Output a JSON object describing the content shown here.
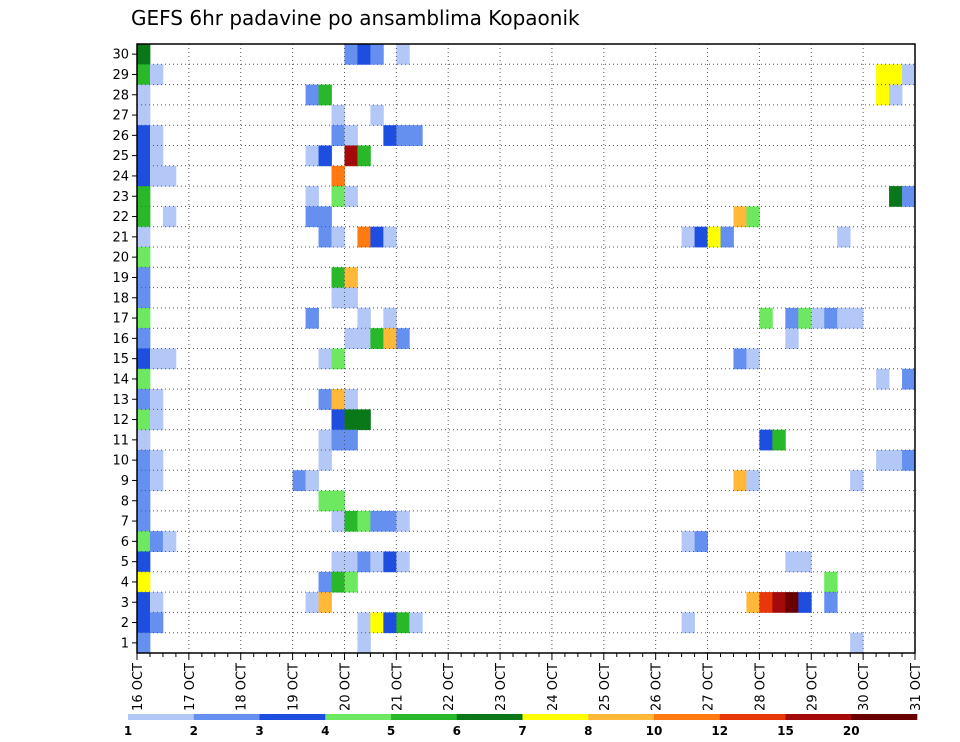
{
  "chart_data": {
    "type": "heatmap",
    "title": "GEFS 6hr padavine po ansamblima Kopaonik",
    "x_tick_labels": [
      "16 OCT",
      "17 OCT",
      "18 OCT",
      "19 OCT",
      "20 OCT",
      "21 OCT",
      "22 OCT",
      "23 OCT",
      "24 OCT",
      "25 OCT",
      "26 OCT",
      "27 OCT",
      "28 OCT",
      "29 OCT",
      "30 OCT",
      "31 OCT"
    ],
    "y_tick_labels": [
      "1",
      "2",
      "3",
      "4",
      "5",
      "6",
      "7",
      "8",
      "9",
      "10",
      "11",
      "12",
      "13",
      "14",
      "15",
      "16",
      "17",
      "18",
      "19",
      "20",
      "21",
      "22",
      "23",
      "24",
      "25",
      "26",
      "27",
      "28",
      "29",
      "30"
    ],
    "time_step_hours": 6,
    "xlim_steps": [
      0,
      60
    ],
    "ylim": [
      0,
      30
    ],
    "grid": true,
    "colorbar": {
      "labels": [
        "1",
        "2",
        "3",
        "4",
        "5",
        "6",
        "7",
        "8",
        "10",
        "12",
        "15",
        "20"
      ],
      "colors": [
        "#b4c8f8",
        "#6690f0",
        "#1e4ee0",
        "#6ee860",
        "#28b82a",
        "#0a7818",
        "#ffff00",
        "#ffb838",
        "#ff7a10",
        "#e8380a",
        "#a40a0a",
        "#680000"
      ]
    },
    "cells": [
      {
        "member": 30,
        "step": 0,
        "level": 6
      },
      {
        "member": 30,
        "step": 16,
        "level": 2
      },
      {
        "member": 30,
        "step": 17,
        "level": 3
      },
      {
        "member": 30,
        "step": 18,
        "level": 2
      },
      {
        "member": 30,
        "step": 20,
        "level": 1
      },
      {
        "member": 29,
        "step": 0,
        "level": 5
      },
      {
        "member": 29,
        "step": 1,
        "level": 1
      },
      {
        "member": 29,
        "step": 57,
        "level": 7
      },
      {
        "member": 29,
        "step": 58,
        "level": 7
      },
      {
        "member": 29,
        "step": 59,
        "level": 1
      },
      {
        "member": 28,
        "step": 0,
        "level": 1
      },
      {
        "member": 28,
        "step": 13,
        "level": 2
      },
      {
        "member": 28,
        "step": 14,
        "level": 5
      },
      {
        "member": 28,
        "step": 57,
        "level": 7
      },
      {
        "member": 28,
        "step": 58,
        "level": 1
      },
      {
        "member": 27,
        "step": 0,
        "level": 1
      },
      {
        "member": 27,
        "step": 15,
        "level": 1
      },
      {
        "member": 27,
        "step": 18,
        "level": 1
      },
      {
        "member": 26,
        "step": 0,
        "level": 3
      },
      {
        "member": 26,
        "step": 1,
        "level": 1
      },
      {
        "member": 26,
        "step": 15,
        "level": 2
      },
      {
        "member": 26,
        "step": 16,
        "level": 1
      },
      {
        "member": 26,
        "step": 19,
        "level": 3
      },
      {
        "member": 26,
        "step": 20,
        "level": 2
      },
      {
        "member": 26,
        "step": 21,
        "level": 2
      },
      {
        "member": 25,
        "step": 0,
        "level": 3
      },
      {
        "member": 25,
        "step": 1,
        "level": 1
      },
      {
        "member": 25,
        "step": 13,
        "level": 1
      },
      {
        "member": 25,
        "step": 14,
        "level": 3
      },
      {
        "member": 25,
        "step": 16,
        "level": 11
      },
      {
        "member": 25,
        "step": 17,
        "level": 5
      },
      {
        "member": 24,
        "step": 0,
        "level": 3
      },
      {
        "member": 24,
        "step": 1,
        "level": 1
      },
      {
        "member": 24,
        "step": 2,
        "level": 1
      },
      {
        "member": 24,
        "step": 15,
        "level": 9
      },
      {
        "member": 23,
        "step": 0,
        "level": 5
      },
      {
        "member": 23,
        "step": 13,
        "level": 1
      },
      {
        "member": 23,
        "step": 15,
        "level": 4
      },
      {
        "member": 23,
        "step": 16,
        "level": 1
      },
      {
        "member": 23,
        "step": 58,
        "level": 6
      },
      {
        "member": 23,
        "step": 59,
        "level": 2
      },
      {
        "member": 22,
        "step": 0,
        "level": 5
      },
      {
        "member": 22,
        "step": 2,
        "level": 1
      },
      {
        "member": 22,
        "step": 13,
        "level": 2
      },
      {
        "member": 22,
        "step": 14,
        "level": 2
      },
      {
        "member": 22,
        "step": 46,
        "level": 8
      },
      {
        "member": 22,
        "step": 47,
        "level": 4
      },
      {
        "member": 21,
        "step": 0,
        "level": 1
      },
      {
        "member": 21,
        "step": 14,
        "level": 2
      },
      {
        "member": 21,
        "step": 15,
        "level": 1
      },
      {
        "member": 21,
        "step": 17,
        "level": 9
      },
      {
        "member": 21,
        "step": 18,
        "level": 3
      },
      {
        "member": 21,
        "step": 19,
        "level": 1
      },
      {
        "member": 21,
        "step": 42,
        "level": 1
      },
      {
        "member": 21,
        "step": 43,
        "level": 3
      },
      {
        "member": 21,
        "step": 44,
        "level": 7
      },
      {
        "member": 21,
        "step": 45,
        "level": 2
      },
      {
        "member": 21,
        "step": 54,
        "level": 1
      },
      {
        "member": 20,
        "step": 0,
        "level": 4
      },
      {
        "member": 19,
        "step": 0,
        "level": 2
      },
      {
        "member": 19,
        "step": 15,
        "level": 5
      },
      {
        "member": 19,
        "step": 16,
        "level": 8
      },
      {
        "member": 18,
        "step": 0,
        "level": 2
      },
      {
        "member": 18,
        "step": 15,
        "level": 1
      },
      {
        "member": 18,
        "step": 16,
        "level": 1
      },
      {
        "member": 17,
        "step": 0,
        "level": 4
      },
      {
        "member": 17,
        "step": 13,
        "level": 2
      },
      {
        "member": 17,
        "step": 17,
        "level": 1
      },
      {
        "member": 17,
        "step": 19,
        "level": 1
      },
      {
        "member": 17,
        "step": 48,
        "level": 4
      },
      {
        "member": 17,
        "step": 50,
        "level": 2
      },
      {
        "member": 17,
        "step": 51,
        "level": 4
      },
      {
        "member": 17,
        "step": 52,
        "level": 1
      },
      {
        "member": 17,
        "step": 53,
        "level": 2
      },
      {
        "member": 17,
        "step": 54,
        "level": 1
      },
      {
        "member": 17,
        "step": 55,
        "level": 1
      },
      {
        "member": 16,
        "step": 0,
        "level": 2
      },
      {
        "member": 16,
        "step": 16,
        "level": 1
      },
      {
        "member": 16,
        "step": 17,
        "level": 1
      },
      {
        "member": 16,
        "step": 18,
        "level": 5
      },
      {
        "member": 16,
        "step": 19,
        "level": 8
      },
      {
        "member": 16,
        "step": 20,
        "level": 2
      },
      {
        "member": 16,
        "step": 50,
        "level": 1
      },
      {
        "member": 15,
        "step": 0,
        "level": 3
      },
      {
        "member": 15,
        "step": 1,
        "level": 1
      },
      {
        "member": 15,
        "step": 2,
        "level": 1
      },
      {
        "member": 15,
        "step": 14,
        "level": 1
      },
      {
        "member": 15,
        "step": 15,
        "level": 4
      },
      {
        "member": 15,
        "step": 46,
        "level": 2
      },
      {
        "member": 15,
        "step": 47,
        "level": 1
      },
      {
        "member": 14,
        "step": 0,
        "level": 4
      },
      {
        "member": 14,
        "step": 57,
        "level": 1
      },
      {
        "member": 14,
        "step": 59,
        "level": 2
      },
      {
        "member": 13,
        "step": 0,
        "level": 2
      },
      {
        "member": 13,
        "step": 1,
        "level": 1
      },
      {
        "member": 13,
        "step": 14,
        "level": 2
      },
      {
        "member": 13,
        "step": 15,
        "level": 8
      },
      {
        "member": 13,
        "step": 16,
        "level": 1
      },
      {
        "member": 12,
        "step": 0,
        "level": 4
      },
      {
        "member": 12,
        "step": 1,
        "level": 1
      },
      {
        "member": 12,
        "step": 15,
        "level": 3
      },
      {
        "member": 12,
        "step": 16,
        "level": 6
      },
      {
        "member": 12,
        "step": 17,
        "level": 6
      },
      {
        "member": 11,
        "step": 0,
        "level": 1
      },
      {
        "member": 11,
        "step": 14,
        "level": 1
      },
      {
        "member": 11,
        "step": 15,
        "level": 2
      },
      {
        "member": 11,
        "step": 16,
        "level": 2
      },
      {
        "member": 11,
        "step": 48,
        "level": 3
      },
      {
        "member": 11,
        "step": 49,
        "level": 5
      },
      {
        "member": 10,
        "step": 0,
        "level": 2
      },
      {
        "member": 10,
        "step": 1,
        "level": 1
      },
      {
        "member": 10,
        "step": 14,
        "level": 1
      },
      {
        "member": 10,
        "step": 57,
        "level": 1
      },
      {
        "member": 10,
        "step": 58,
        "level": 1
      },
      {
        "member": 10,
        "step": 59,
        "level": 2
      },
      {
        "member": 9,
        "step": 0,
        "level": 2
      },
      {
        "member": 9,
        "step": 1,
        "level": 1
      },
      {
        "member": 9,
        "step": 12,
        "level": 2
      },
      {
        "member": 9,
        "step": 13,
        "level": 1
      },
      {
        "member": 9,
        "step": 46,
        "level": 8
      },
      {
        "member": 9,
        "step": 47,
        "level": 1
      },
      {
        "member": 9,
        "step": 55,
        "level": 1
      },
      {
        "member": 8,
        "step": 0,
        "level": 2
      },
      {
        "member": 8,
        "step": 14,
        "level": 4
      },
      {
        "member": 8,
        "step": 15,
        "level": 4
      },
      {
        "member": 7,
        "step": 0,
        "level": 2
      },
      {
        "member": 7,
        "step": 15,
        "level": 1
      },
      {
        "member": 7,
        "step": 16,
        "level": 5
      },
      {
        "member": 7,
        "step": 17,
        "level": 4
      },
      {
        "member": 7,
        "step": 18,
        "level": 2
      },
      {
        "member": 7,
        "step": 19,
        "level": 2
      },
      {
        "member": 7,
        "step": 20,
        "level": 1
      },
      {
        "member": 6,
        "step": 0,
        "level": 4
      },
      {
        "member": 6,
        "step": 1,
        "level": 2
      },
      {
        "member": 6,
        "step": 2,
        "level": 1
      },
      {
        "member": 6,
        "step": 42,
        "level": 1
      },
      {
        "member": 6,
        "step": 43,
        "level": 2
      },
      {
        "member": 5,
        "step": 0,
        "level": 3
      },
      {
        "member": 5,
        "step": 15,
        "level": 1
      },
      {
        "member": 5,
        "step": 16,
        "level": 1
      },
      {
        "member": 5,
        "step": 17,
        "level": 2
      },
      {
        "member": 5,
        "step": 18,
        "level": 1
      },
      {
        "member": 5,
        "step": 19,
        "level": 3
      },
      {
        "member": 5,
        "step": 20,
        "level": 1
      },
      {
        "member": 5,
        "step": 50,
        "level": 1
      },
      {
        "member": 5,
        "step": 51,
        "level": 1
      },
      {
        "member": 4,
        "step": 0,
        "level": 7
      },
      {
        "member": 4,
        "step": 14,
        "level": 2
      },
      {
        "member": 4,
        "step": 15,
        "level": 5
      },
      {
        "member": 4,
        "step": 16,
        "level": 4
      },
      {
        "member": 4,
        "step": 53,
        "level": 4
      },
      {
        "member": 3,
        "step": 0,
        "level": 3
      },
      {
        "member": 3,
        "step": 1,
        "level": 1
      },
      {
        "member": 3,
        "step": 13,
        "level": 1
      },
      {
        "member": 3,
        "step": 14,
        "level": 8
      },
      {
        "member": 3,
        "step": 47,
        "level": 8
      },
      {
        "member": 3,
        "step": 48,
        "level": 10
      },
      {
        "member": 3,
        "step": 49,
        "level": 11
      },
      {
        "member": 3,
        "step": 50,
        "level": 12
      },
      {
        "member": 3,
        "step": 51,
        "level": 3
      },
      {
        "member": 3,
        "step": 53,
        "level": 2
      },
      {
        "member": 2,
        "step": 0,
        "level": 3
      },
      {
        "member": 2,
        "step": 1,
        "level": 2
      },
      {
        "member": 2,
        "step": 17,
        "level": 1
      },
      {
        "member": 2,
        "step": 18,
        "level": 7
      },
      {
        "member": 2,
        "step": 19,
        "level": 3
      },
      {
        "member": 2,
        "step": 20,
        "level": 5
      },
      {
        "member": 2,
        "step": 21,
        "level": 1
      },
      {
        "member": 2,
        "step": 42,
        "level": 1
      },
      {
        "member": 1,
        "step": 0,
        "level": 2
      },
      {
        "member": 1,
        "step": 17,
        "level": 1
      },
      {
        "member": 1,
        "step": 55,
        "level": 1
      }
    ]
  }
}
